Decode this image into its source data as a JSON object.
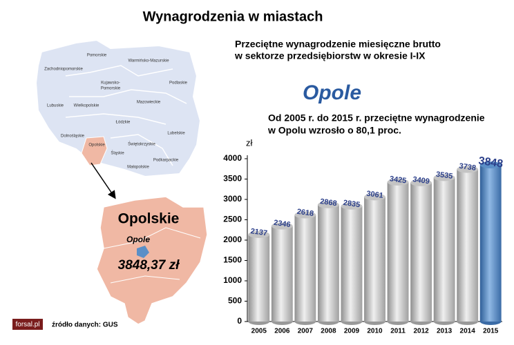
{
  "chart_data": {
    "type": "bar",
    "title": "Wynagrodzenia w miastach",
    "subtitle": [
      "Przeciętne wynagrodzenie miesięczne brutto",
      "w sektorze przedsiębiorstw w okresie I-IX"
    ],
    "city": "Opole",
    "annotation": [
      "Od 2005 r. do 2015 r. przeciętne wynagrodzenie",
      "w Opolu wzrosło o 80,1 proc."
    ],
    "y_unit": "zł",
    "categories": [
      "2005",
      "2006",
      "2007",
      "2008",
      "2009",
      "2010",
      "2011",
      "2012",
      "2013",
      "2014",
      "2015"
    ],
    "values": [
      2137,
      2346,
      2618,
      2868,
      2835,
      3061,
      3425,
      3409,
      3535,
      3738,
      3848
    ],
    "colors": [
      "#c4c4c4",
      "#c4c4c4",
      "#c4c4c4",
      "#c4c4c4",
      "#c4c4c4",
      "#c4c4c4",
      "#c4c4c4",
      "#c4c4c4",
      "#c4c4c4",
      "#c4c4c4",
      "#5b8fc7"
    ],
    "ylim": [
      0,
      4000
    ],
    "yticks": [
      0,
      500,
      1000,
      1500,
      2000,
      2500,
      3000,
      3500,
      4000
    ],
    "grid": false
  },
  "map": {
    "labels": [
      "Pomorskie",
      "Warmińsko-Mazurskie",
      "Zachodniopomorskie",
      "Kujawsko-",
      "Pomorskie",
      "Podlaskie",
      "Lubuskie",
      "Wielkopolskie",
      "Mazowieckie",
      "Łódzkie",
      "Lubelskie",
      "Dolnośląskie",
      "Opolskie",
      "Świętokrzyskie",
      "Śląskie",
      "Podkarpackie",
      "Małopolskie"
    ],
    "region": "Opolskie",
    "city": "Opole",
    "salary": "3848,37 zł"
  },
  "footer": {
    "logo": "forsal.pl",
    "source": "źródło danych: GUS"
  }
}
